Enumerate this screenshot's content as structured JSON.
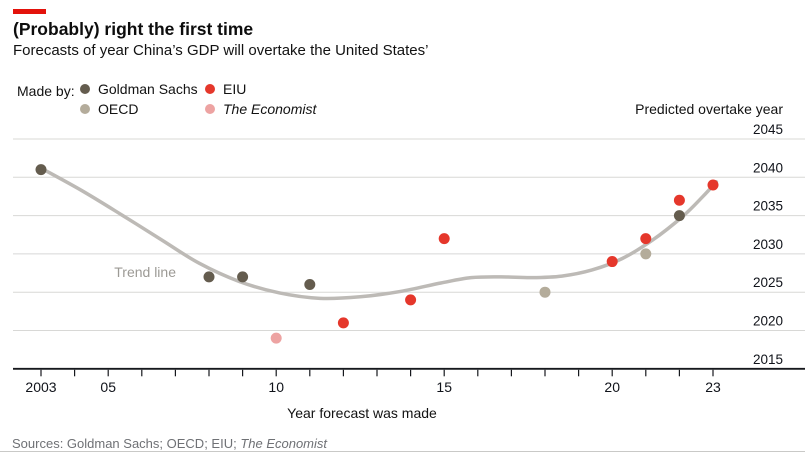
{
  "header": {
    "title": "(Probably) right the first time",
    "subtitle": "Forecasts of year China’s GDP will overtake the United States’"
  },
  "legend": {
    "label": "Made by:"
  },
  "brand": {
    "red": "#e3120b"
  },
  "chart_data": {
    "type": "scatter",
    "title": "(Probably) right the first time",
    "subtitle": "Forecasts of year China’s GDP will overtake the United States’",
    "xlabel": "Year forecast was made",
    "ylabel": "Predicted overtake year",
    "xlim": [
      2002.2,
      2024.8
    ],
    "ylim": [
      2015,
      2045
    ],
    "grid": "horizontal",
    "legend_position": "top-left",
    "yticks": [
      2045,
      2040,
      2035,
      2030,
      2025,
      2020,
      2015
    ],
    "baseline": 2015,
    "xticks_range": [
      2003,
      2023
    ],
    "xtick_labels": {
      "2003": "2003",
      "2005": "05",
      "2010": "10",
      "2015": "15",
      "2020": "20",
      "2023": "23"
    },
    "colors": {
      "grid": "#d8d8d6",
      "axis": "#16181d",
      "text": "#10131a"
    },
    "series": [
      {
        "name": "Goldman Sachs",
        "color": "#645c4e",
        "points": [
          [
            2003,
            2041
          ],
          [
            2008,
            2027
          ],
          [
            2009,
            2027
          ],
          [
            2011,
            2026
          ],
          [
            2022,
            2035
          ]
        ]
      },
      {
        "name": "OECD",
        "color": "#b4ac9b",
        "points": [
          [
            2018,
            2025
          ],
          [
            2021,
            2030
          ]
        ]
      },
      {
        "name": "EIU",
        "color": "#e5372b",
        "points": [
          [
            2012,
            2021
          ],
          [
            2014,
            2024
          ],
          [
            2015,
            2032
          ],
          [
            2020,
            2029
          ],
          [
            2021,
            2032
          ],
          [
            2022,
            2037
          ],
          [
            2023,
            2039
          ]
        ]
      },
      {
        "name": "The Economist",
        "color": "#eda3a2",
        "italic": true,
        "points": [
          [
            2010,
            2019
          ]
        ]
      }
    ],
    "trend": {
      "label": "Trend line",
      "color": "#bdbab6",
      "label_color": "#9c9a95",
      "points": [
        [
          2003.0,
          2041.2
        ],
        [
          2004.2,
          2038.3
        ],
        [
          2005.4,
          2035.1
        ],
        [
          2006.6,
          2031.8
        ],
        [
          2007.7,
          2028.8
        ],
        [
          2008.9,
          2026.4
        ],
        [
          2010.1,
          2024.9
        ],
        [
          2011.3,
          2024.2
        ],
        [
          2012.5,
          2024.4
        ],
        [
          2013.7,
          2025.1
        ],
        [
          2014.9,
          2026.2
        ],
        [
          2015.8,
          2026.9
        ],
        [
          2016.7,
          2027.0
        ],
        [
          2017.6,
          2026.9
        ],
        [
          2018.5,
          2027.1
        ],
        [
          2019.4,
          2027.9
        ],
        [
          2020.3,
          2029.4
        ],
        [
          2021.2,
          2031.8
        ],
        [
          2022.1,
          2034.9
        ],
        [
          2022.7,
          2037.5
        ],
        [
          2023.1,
          2039.4
        ]
      ]
    }
  },
  "footer": {
    "sources_prefix": "Sources: Goldman Sachs; OECD; EIU; ",
    "sources_italic": "The Economist"
  }
}
